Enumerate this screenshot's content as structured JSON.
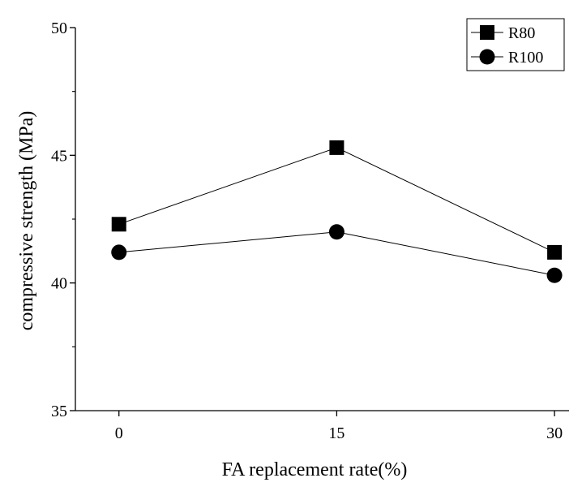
{
  "chart_data": {
    "type": "line",
    "xlabel": "FA replacement rate(%)",
    "ylabel": "compressive strength (MPa)",
    "x": [
      0,
      15,
      30
    ],
    "x_ticks": [
      "0",
      "15",
      "30"
    ],
    "y_ticks": [
      "35",
      "40",
      "45",
      "50"
    ],
    "xlim": [
      -3,
      31
    ],
    "ylim": [
      35,
      50
    ],
    "grid": false,
    "legend_position": "top-right",
    "series": [
      {
        "name": "R80",
        "marker": "square",
        "values": [
          42.3,
          45.3,
          41.2
        ],
        "color": "#000000"
      },
      {
        "name": "R100",
        "marker": "circle",
        "values": [
          41.2,
          42.0,
          40.3
        ],
        "color": "#000000"
      }
    ]
  }
}
